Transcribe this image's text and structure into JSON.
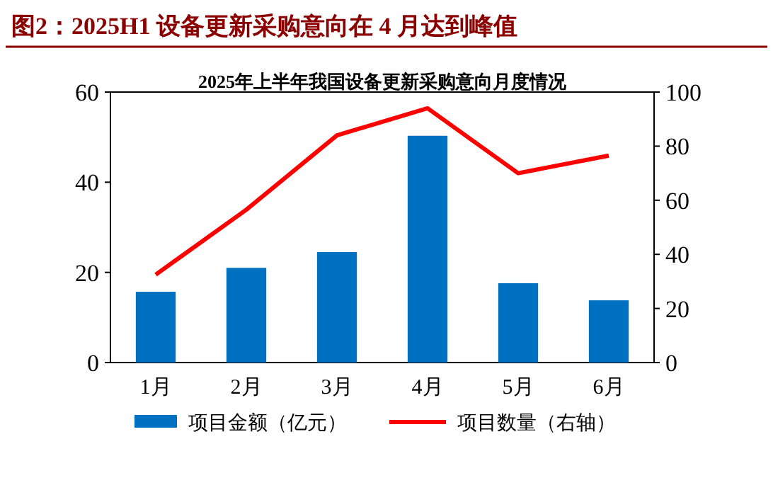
{
  "chart_data": {
    "type": "bar",
    "title": "图2：2025H1 设备更新采购意向在 4 月达到峰值",
    "subtitle": "2025年上半年我国设备更新采购意向月度情况",
    "categories": [
      "1月",
      "2月",
      "3月",
      "4月",
      "5月",
      "6月"
    ],
    "series": [
      {
        "name": "项目金额（亿元）",
        "color": "#0070c0",
        "values": [
          15.7,
          21,
          24.5,
          50.3,
          17.6,
          13.8
        ]
      },
      {
        "name": "项目数量（右轴）",
        "type": "line",
        "axis": "y2",
        "color": "#ff0000",
        "values": [
          32.5,
          56.5,
          84,
          94,
          70,
          76.5
        ]
      }
    ],
    "ylim": [
      0,
      60
    ],
    "yticks": [
      0,
      20,
      40,
      60
    ],
    "y2lim": [
      0,
      100
    ],
    "y2ticks": [
      0,
      20,
      40,
      60,
      80,
      100
    ],
    "legend": "bottom",
    "marker": "none",
    "line_style": "solid",
    "grid": false
  }
}
